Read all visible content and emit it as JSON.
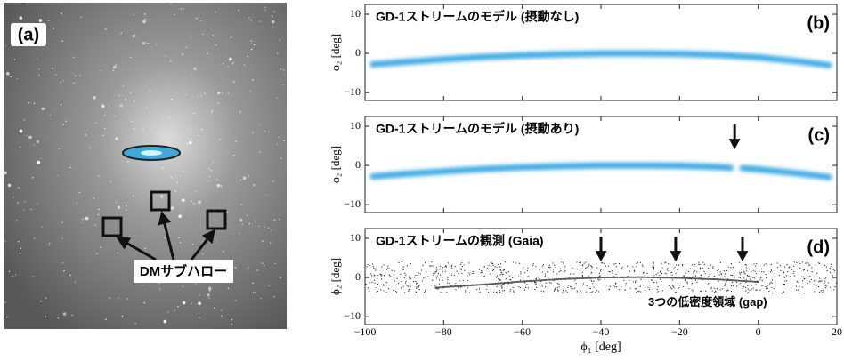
{
  "panel_a": {
    "label": "(a)",
    "annotation": "DMサブハロー"
  },
  "chart_data": [
    {
      "type": "band",
      "panel_label": "(b)",
      "title": "GD-1ストリームのモデル (摂動なし)",
      "color": "#1e9be0",
      "x": [
        -98,
        -90,
        -80,
        -70,
        -60,
        -50,
        -40,
        -30,
        -20,
        -10,
        0,
        10,
        18
      ],
      "values": [
        -2.8,
        -2.2,
        -1.5,
        -0.9,
        -0.5,
        -0.2,
        0,
        0,
        -0.1,
        -0.4,
        -1,
        -2,
        -3
      ],
      "xlim": [
        -100,
        20
      ],
      "xticks": [
        -100,
        -80,
        -60,
        -40,
        -20,
        0,
        20
      ],
      "show_xtick_labels": false,
      "ylim": [
        -12,
        12.5
      ],
      "yticks": [
        {
          "value": -10,
          "label": "−10"
        },
        0,
        10
      ],
      "ylabel": "ϕ₂ [deg]"
    },
    {
      "type": "band",
      "panel_label": "(c)",
      "title": "GD-1ストリームのモデル (摂動あり)",
      "color": "#1e9be0",
      "x": [
        -98,
        -90,
        -80,
        -70,
        -60,
        -50,
        -40,
        -30,
        -20,
        -10,
        -7,
        -6,
        -4,
        0,
        10,
        18
      ],
      "values": [
        -2.8,
        -2.2,
        -1.5,
        -0.9,
        -0.5,
        -0.2,
        0,
        0,
        -0.1,
        -0.4,
        -0.6,
        null,
        -0.7,
        -1,
        -2,
        -3
      ],
      "arrows_x": [
        -6
      ],
      "xlim": [
        -100,
        20
      ],
      "xticks": [
        -100,
        -80,
        -60,
        -40,
        -20,
        0,
        20
      ],
      "show_xtick_labels": false,
      "ylim": [
        -12,
        12.5
      ],
      "yticks": [
        {
          "value": -10,
          "label": "−10"
        },
        0,
        10
      ],
      "ylabel": "ϕ₂ [deg]"
    },
    {
      "type": "band",
      "panel_label": "(d)",
      "title": "GD-1ストリームの観測 (Gaia)",
      "annotation": "3つの低密度領域 (gap)",
      "color": "#333333",
      "x": [
        -82,
        -70,
        -60,
        -50,
        -40,
        -30,
        -20,
        -10,
        0
      ],
      "values": [
        -2.6,
        -1.8,
        -1,
        -0.4,
        0,
        0.1,
        -0.1,
        -0.5,
        -1.1
      ],
      "arrows_x": [
        -40,
        -21,
        -4
      ],
      "xlim": [
        -100,
        20
      ],
      "xticks": [
        {
          "value": -100,
          "label": "−100"
        },
        {
          "value": -80,
          "label": "−80"
        },
        {
          "value": -60,
          "label": "−60"
        },
        {
          "value": -40,
          "label": "−40"
        },
        {
          "value": -20,
          "label": "−20"
        },
        0,
        20
      ],
      "show_xtick_labels": true,
      "xlabel": "ϕ₁ [deg]",
      "ylim": [
        -12,
        12.5
      ],
      "yticks": [
        {
          "value": -10,
          "label": "−10"
        },
        0,
        10
      ],
      "ylabel": "ϕ₂ [deg]"
    }
  ]
}
